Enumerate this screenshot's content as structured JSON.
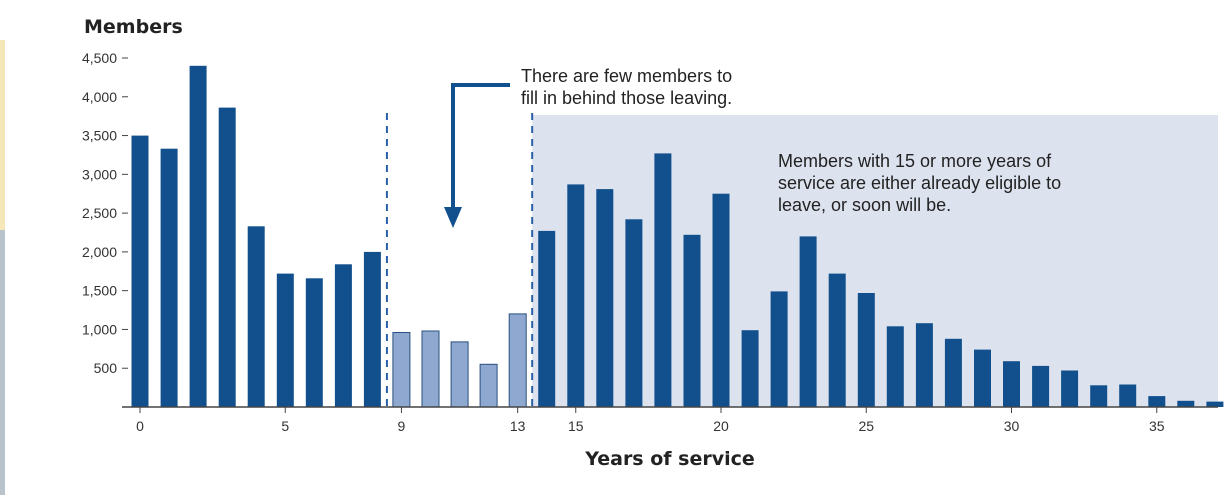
{
  "chart_data": {
    "type": "bar",
    "ylabel": "Members",
    "xlabel": "Years of service",
    "ylim": [
      0,
      4500
    ],
    "yticks": [
      500,
      1000,
      1500,
      2000,
      2500,
      3000,
      3500,
      4000,
      4500
    ],
    "ytick_labels": [
      "500",
      "1,000",
      "1,500",
      "2,000",
      "2,500",
      "3,000",
      "3,500",
      "4,000",
      "4,500"
    ],
    "xticks": [
      0,
      5,
      9,
      13,
      15,
      20,
      25,
      30,
      35
    ],
    "xtick_labels": [
      "0",
      "5",
      "9",
      "13",
      "15",
      "20",
      "25",
      "30",
      "35"
    ],
    "categories": [
      0,
      1,
      2,
      3,
      4,
      5,
      6,
      7,
      8,
      9,
      10,
      11,
      12,
      13,
      14,
      15,
      16,
      17,
      18,
      19,
      20,
      21,
      22,
      23,
      24,
      25,
      26,
      27,
      28,
      29,
      30,
      31,
      32,
      33,
      34,
      35,
      36,
      37
    ],
    "values": [
      3500,
      3330,
      4400,
      3860,
      2330,
      1720,
      1660,
      1840,
      2000,
      960,
      980,
      840,
      550,
      1200,
      2270,
      2870,
      2810,
      2420,
      3270,
      2220,
      2750,
      990,
      1490,
      2200,
      1720,
      1470,
      1040,
      1080,
      880,
      740,
      590,
      530,
      470,
      280,
      290,
      140,
      80,
      70
    ],
    "highlight_range": [
      9,
      13
    ],
    "dashed_lines_at": [
      8.5,
      13.5
    ],
    "shaded_region_start": 13.5,
    "annotations": [
      {
        "id": "gap",
        "lines": [
          "There are few members to",
          "fill in behind those leaving."
        ]
      },
      {
        "id": "eligible",
        "lines": [
          "Members with 15 or more years of",
          "service are either already eligible to",
          "leave, or soon will be."
        ]
      }
    ],
    "colors": {
      "bar": "#12508d",
      "bar_highlight": "#8fa8cf",
      "bar_outline": "#2a4f80",
      "shade": "#dde2ef",
      "dashed": "#2860a8",
      "arrow": "#12508d",
      "axis": "#444444"
    }
  }
}
